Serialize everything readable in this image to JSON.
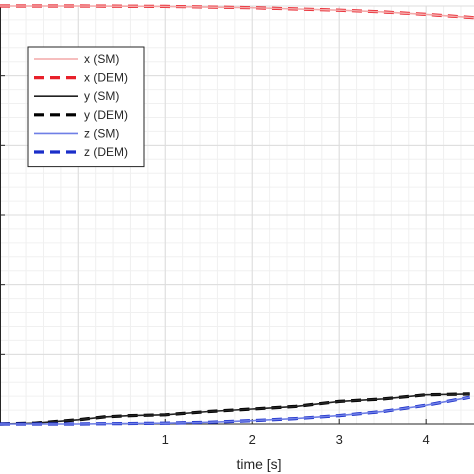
{
  "chart_data": {
    "type": "line",
    "title": "",
    "xlabel": "time [s]",
    "ylabel": "",
    "xlim": [
      -0.9,
      4.55
    ],
    "ylim": [
      0,
      1.0
    ],
    "xticks": [
      1,
      2,
      3,
      4
    ],
    "xtick_labels": [
      "1",
      "2",
      "3",
      "4"
    ],
    "grid": "on (major and minor)",
    "legend_position": "top-left",
    "series": [
      {
        "name": "x (SM)",
        "color": "#f4a9a9",
        "style": "solid",
        "x": [
          -0.9,
          0,
          1,
          2,
          3,
          3.5,
          4,
          4.55
        ],
        "y": [
          1.0,
          1.0,
          0.999,
          0.996,
          0.99,
          0.986,
          0.98,
          0.972
        ]
      },
      {
        "name": "x (DEM)",
        "color": "#e8202a",
        "style": "dashed",
        "x": [
          -0.9,
          0,
          1,
          2,
          3,
          3.5,
          4,
          4.55
        ],
        "y": [
          1.0,
          1.0,
          0.999,
          0.996,
          0.99,
          0.986,
          0.98,
          0.972
        ]
      },
      {
        "name": "y (SM)",
        "color": "#222222",
        "style": "solid",
        "x": [
          -0.9,
          -0.5,
          0,
          0.3,
          0.6,
          1,
          1.5,
          2,
          2.5,
          3,
          3.5,
          4,
          4.5
        ],
        "y": [
          0.0,
          0.002,
          0.01,
          0.017,
          0.02,
          0.022,
          0.03,
          0.036,
          0.042,
          0.054,
          0.06,
          0.07,
          0.072
        ]
      },
      {
        "name": "y (DEM)",
        "color": "#000000",
        "style": "dashed",
        "x": [
          -0.9,
          -0.5,
          0,
          0.3,
          0.6,
          1,
          1.5,
          2,
          2.5,
          3,
          3.5,
          4,
          4.5
        ],
        "y": [
          0.0,
          0.002,
          0.01,
          0.017,
          0.02,
          0.022,
          0.03,
          0.036,
          0.042,
          0.054,
          0.06,
          0.07,
          0.072
        ]
      },
      {
        "name": "z (SM)",
        "color": "#6f7fe6",
        "style": "solid",
        "x": [
          -0.9,
          0,
          0.5,
          1,
          1.5,
          2,
          2.5,
          3,
          3.5,
          4,
          4.5
        ],
        "y": [
          0.0,
          0.0,
          0.001,
          0.002,
          0.004,
          0.008,
          0.013,
          0.02,
          0.03,
          0.045,
          0.064
        ]
      },
      {
        "name": "z (DEM)",
        "color": "#1a2ec9",
        "style": "dashed",
        "x": [
          -0.9,
          0,
          0.5,
          1,
          1.5,
          2,
          2.5,
          3,
          3.5,
          4,
          4.5
        ],
        "y": [
          0.0,
          0.0,
          0.001,
          0.002,
          0.004,
          0.008,
          0.013,
          0.02,
          0.03,
          0.045,
          0.064
        ]
      }
    ]
  }
}
